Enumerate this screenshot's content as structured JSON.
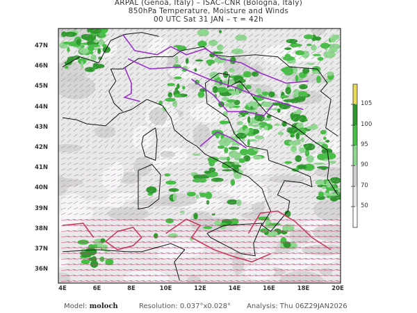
{
  "header": {
    "line1": "ARPAL (Genoa, Italy)  –  ISAC–CNR (Bologna, Italy)",
    "line2": "850hPa Temperature, Moisture and Winds",
    "line3": "00 UTC Sat 31 JAN  –  τ = 42h"
  },
  "map": {
    "lat_labels": [
      "47N",
      "46N",
      "45N",
      "44N",
      "43N",
      "42N",
      "41N",
      "40N",
      "39N",
      "38N",
      "37N",
      "36N"
    ],
    "lon_labels": [
      "4E",
      "6E",
      "8E",
      "10E",
      "12E",
      "14E",
      "16E",
      "18E",
      "20E"
    ],
    "lon_range": [
      4,
      20
    ],
    "lat_range": [
      35.4,
      47.8
    ],
    "watermark": "ARPAL"
  },
  "colorbar": {
    "labels": [
      "105",
      "100",
      "95",
      "90",
      "70",
      "50"
    ],
    "colors": [
      "#e8d95a",
      "#2e9a2e",
      "#45c045",
      "#8fd88f",
      "#cfcfcf",
      "#e6e6e6",
      "#ffffff"
    ]
  },
  "footer": {
    "model_label": "Model:",
    "model_value": "moloch",
    "resolution_label": "Resolution:",
    "resolution_value": "0.037°x0.028°",
    "analysis_label": "Analysis:",
    "analysis_value": "Thu  06Z29JAN2026"
  }
}
